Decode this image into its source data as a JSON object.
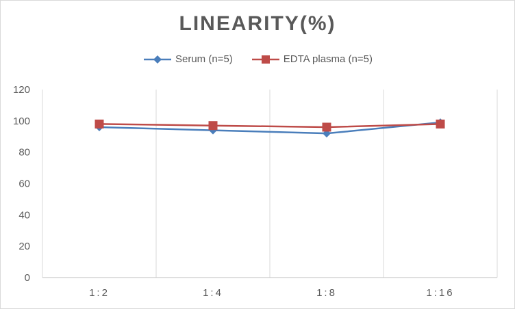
{
  "chart_data": {
    "type": "line",
    "title": "LINEARITY(%)",
    "categories": [
      "1:2",
      "1:4",
      "1:8",
      "1:16"
    ],
    "series": [
      {
        "name": "Serum (n=5)",
        "color": "#4a7ebb",
        "marker": "diamond",
        "values": [
          96,
          94,
          92,
          99
        ]
      },
      {
        "name": "EDTA plasma (n=5)",
        "color": "#be4b48",
        "marker": "square",
        "values": [
          98,
          97,
          96,
          98
        ]
      }
    ],
    "ylim": [
      0,
      120
    ],
    "yticks": [
      "0",
      "20",
      "40",
      "60",
      "80",
      "100",
      "120"
    ],
    "xlabel": "",
    "ylabel": "",
    "legend": "top"
  }
}
